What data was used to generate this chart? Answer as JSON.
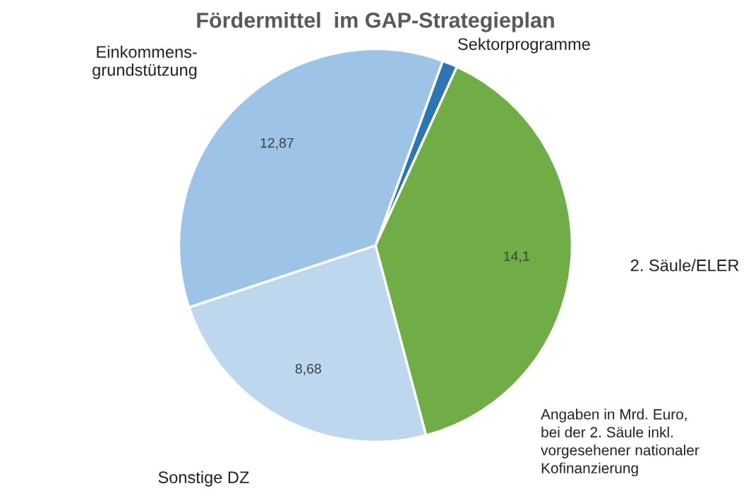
{
  "chart_data": {
    "type": "pie",
    "title": "Fördermittel  im GAP-Strategieplan",
    "categories": [
      "Sektorprogramme",
      "2. Säule/ELER",
      "Sonstige DZ",
      "Einkommens-\ngrundstützung"
    ],
    "values": [
      0.45,
      14.1,
      8.68,
      12.87
    ],
    "value_labels": [
      null,
      "14,1",
      "8,68",
      "12,87"
    ],
    "colors": [
      "#2e75b6",
      "#70ad47",
      "#bdd7ee",
      "#9dc3e6"
    ],
    "legend": false,
    "annotations": [
      "Angaben in Mrd. Euro,\nbei der 2. Säule inkl.\nvorgesehener nationaler\nKofinanzierung"
    ]
  }
}
